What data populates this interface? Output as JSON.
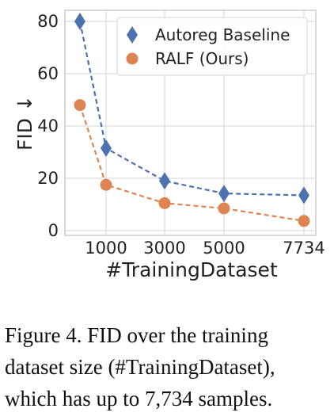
{
  "chart_data": {
    "type": "line",
    "xlabel": "#TrainingDataset",
    "ylabel": "FID ↓",
    "ylim": [
      0,
      85
    ],
    "yticks": [
      0,
      20,
      40,
      60,
      80
    ],
    "xticks": [
      "1000",
      "3000",
      "5000",
      "7734"
    ],
    "grid": true,
    "legend_position": "top-right",
    "series": [
      {
        "name": "Autoreg Baseline",
        "marker": "diamond",
        "color": "#4c72b0",
        "x": [
          "",
          "1000",
          "3000",
          "5000",
          "7734"
        ],
        "values": [
          80,
          31.5,
          19,
          14.2,
          13.5
        ]
      },
      {
        "name": "RALF (Ours)",
        "marker": "circle",
        "color": "#dd8452",
        "x": [
          "",
          "1000",
          "3000",
          "5000",
          "7734"
        ],
        "values": [
          48,
          17.5,
          10.5,
          8.5,
          3.7
        ]
      }
    ]
  },
  "caption": {
    "lines": [
      "Figure 4. FID over the training",
      "dataset size (#TrainingDataset),",
      "which has up to 7,734 samples."
    ]
  }
}
